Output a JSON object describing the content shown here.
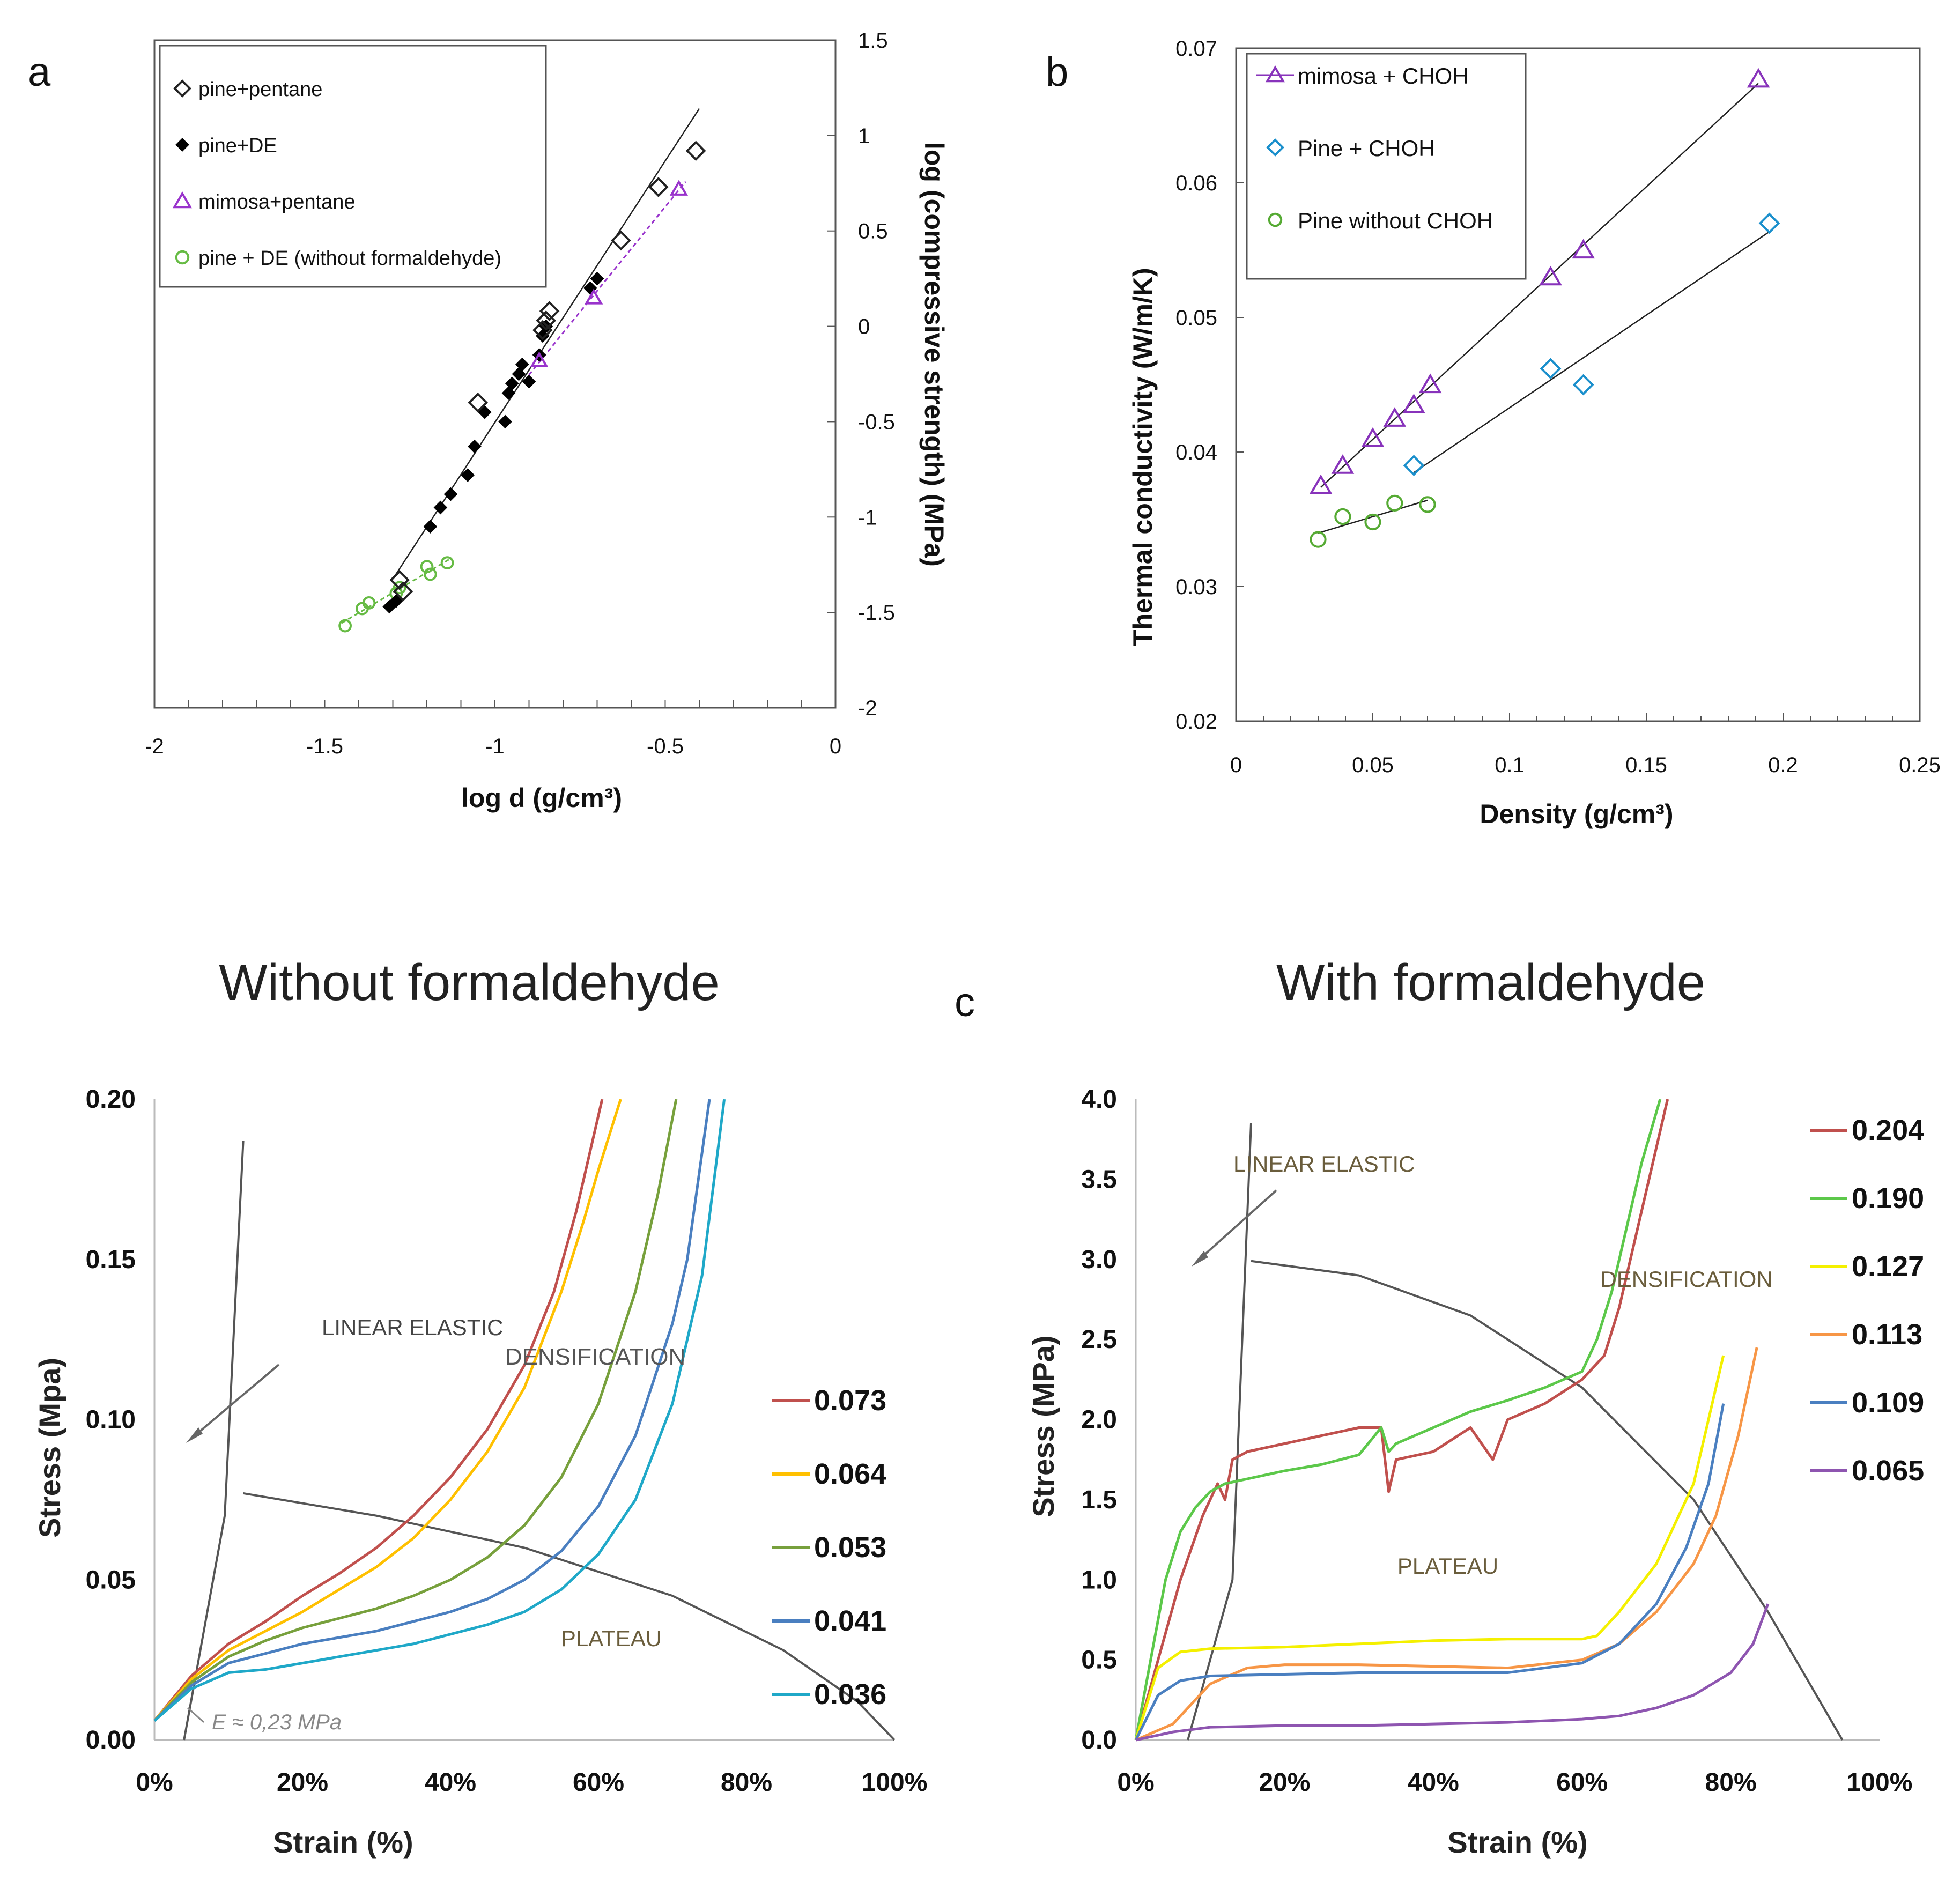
{
  "chart_data": [
    {
      "panel": "a",
      "type": "scatter",
      "title": "",
      "xlabel": "log d (g/cm³)",
      "ylabel": "log (compressive strength) (MPa)",
      "xlim": [
        -2,
        0
      ],
      "ylim": [
        -2,
        1.5
      ],
      "xticks": [
        "-2",
        "-1.5",
        "-1",
        "-0.5",
        "0"
      ],
      "yticks": [
        "1.5",
        "1",
        "0.5",
        "0",
        "-0.5",
        "-1",
        "-1.5",
        "-2"
      ],
      "legend_position": "top-left",
      "series": [
        {
          "name": "pine+pentane",
          "color": "#222222",
          "marker": "diamond-open",
          "x": [
            -1.28,
            -1.27,
            -1.05,
            -0.86,
            -0.85,
            -0.84,
            -0.63,
            -0.52,
            -0.41
          ],
          "y": [
            -1.33,
            -1.39,
            -0.4,
            -0.02,
            0.03,
            0.08,
            0.45,
            0.73,
            0.92
          ]
        },
        {
          "name": "pine+DE",
          "color": "#000000",
          "marker": "diamond-filled",
          "x": [
            -1.31,
            -1.29,
            -1.19,
            -1.16,
            -1.13,
            -1.08,
            -1.06,
            -1.03,
            -0.97,
            -0.96,
            -0.95,
            -0.93,
            -0.92,
            -0.9,
            -0.87,
            -0.86,
            -0.85,
            -0.72,
            -0.7
          ],
          "y": [
            -1.47,
            -1.44,
            -1.05,
            -0.95,
            -0.88,
            -0.78,
            -0.63,
            -0.45,
            -0.5,
            -0.35,
            -0.3,
            -0.25,
            -0.2,
            -0.29,
            -0.15,
            -0.05,
            0.0,
            0.2,
            0.25
          ]
        },
        {
          "name": "mimosa+pentane",
          "color": "#9933cc",
          "marker": "triangle-open",
          "x": [
            -0.87,
            -0.71,
            -0.46
          ],
          "y": [
            -0.18,
            0.15,
            0.72
          ]
        },
        {
          "name": "pine + DE (without formaldehyde)",
          "color": "#66bb44",
          "marker": "circle-open",
          "x": [
            -1.44,
            -1.39,
            -1.37,
            -1.29,
            -1.28,
            -1.2,
            -1.19,
            -1.14
          ],
          "y": [
            -1.57,
            -1.48,
            -1.45,
            -1.4,
            -1.37,
            -1.26,
            -1.3,
            -1.24
          ]
        }
      ]
    },
    {
      "panel": "b",
      "type": "scatter",
      "title": "",
      "xlabel": "Density (g/cm³)",
      "ylabel": "Thermal conductivity (W/m/K)",
      "xlim": [
        0,
        0.25
      ],
      "ylim": [
        0.02,
        0.07
      ],
      "xticks": [
        "0",
        "0.05",
        "0.1",
        "0.15",
        "0.2",
        "0.25"
      ],
      "yticks": [
        "0.07",
        "0.06",
        "0.05",
        "0.04",
        "0.03",
        "0.02"
      ],
      "legend_position": "top-left",
      "series": [
        {
          "name": "mimosa + CHOH",
          "color": "#8833bb",
          "marker": "triangle-open",
          "x": [
            0.031,
            0.039,
            0.05,
            0.058,
            0.065,
            0.071,
            0.115,
            0.127,
            0.191
          ],
          "y": [
            0.0375,
            0.039,
            0.041,
            0.0425,
            0.0435,
            0.045,
            0.053,
            0.055,
            0.0677
          ]
        },
        {
          "name": "Pine + CHOH",
          "color": "#1a8fcc",
          "marker": "diamond-open",
          "x": [
            0.065,
            0.115,
            0.127,
            0.195
          ],
          "y": [
            0.039,
            0.0462,
            0.045,
            0.057
          ]
        },
        {
          "name": "Pine without CHOH",
          "color": "#55aa33",
          "marker": "circle-open",
          "x": [
            0.03,
            0.039,
            0.05,
            0.058,
            0.07
          ],
          "y": [
            0.0335,
            0.0352,
            0.0348,
            0.0362,
            0.0361
          ]
        }
      ]
    },
    {
      "panel": "c-left",
      "type": "line",
      "title": "Without formaldehyde",
      "xlabel": "Strain (%)",
      "ylabel": "Stress (Mpa)",
      "xlim": [
        0,
        100
      ],
      "ylim": [
        0,
        0.2
      ],
      "xticks": [
        "0%",
        "20%",
        "40%",
        "60%",
        "80%",
        "100%"
      ],
      "yticks": [
        "0.20",
        "0.15",
        "0.10",
        "0.05",
        "0.00"
      ],
      "legend_position": "right",
      "annotations": [
        "LINEAR ELASTIC",
        "DENSIFICATION",
        "PLATEAU",
        "E ≈ 0,23 MPa"
      ],
      "series": [
        {
          "name": "0.073",
          "color": "#c0504d",
          "x": [
            0,
            5,
            10,
            15,
            20,
            25,
            30,
            35,
            40,
            45,
            50,
            54,
            57,
            58.5,
            60.5
          ],
          "y": [
            0.006,
            0.02,
            0.03,
            0.037,
            0.045,
            0.052,
            0.06,
            0.07,
            0.082,
            0.097,
            0.117,
            0.14,
            0.165,
            0.18,
            0.2
          ]
        },
        {
          "name": "0.064",
          "color": "#ffc000",
          "x": [
            0,
            5,
            10,
            15,
            20,
            25,
            30,
            35,
            40,
            45,
            50,
            55,
            58,
            60,
            63
          ],
          "y": [
            0.006,
            0.019,
            0.028,
            0.034,
            0.04,
            0.047,
            0.054,
            0.063,
            0.075,
            0.09,
            0.11,
            0.14,
            0.162,
            0.178,
            0.2
          ]
        },
        {
          "name": "0.053",
          "color": "#77a03c",
          "x": [
            0,
            5,
            10,
            15,
            20,
            25,
            30,
            35,
            40,
            45,
            50,
            55,
            60,
            65,
            68,
            70.5
          ],
          "y": [
            0.006,
            0.018,
            0.026,
            0.031,
            0.035,
            0.038,
            0.041,
            0.045,
            0.05,
            0.057,
            0.067,
            0.082,
            0.105,
            0.14,
            0.17,
            0.2
          ]
        },
        {
          "name": "0.041",
          "color": "#4a7fc0",
          "x": [
            0,
            5,
            10,
            15,
            20,
            25,
            30,
            35,
            40,
            45,
            50,
            55,
            60,
            65,
            70,
            72,
            75
          ],
          "y": [
            0.006,
            0.017,
            0.024,
            0.027,
            0.03,
            0.032,
            0.034,
            0.037,
            0.04,
            0.044,
            0.05,
            0.059,
            0.073,
            0.095,
            0.13,
            0.15,
            0.2
          ]
        },
        {
          "name": "0.036",
          "color": "#1fa8c8",
          "x": [
            0,
            5,
            10,
            15,
            20,
            25,
            30,
            35,
            40,
            45,
            50,
            55,
            60,
            65,
            70,
            74,
            77
          ],
          "y": [
            0.006,
            0.016,
            0.021,
            0.022,
            0.024,
            0.026,
            0.028,
            0.03,
            0.033,
            0.036,
            0.04,
            0.047,
            0.058,
            0.075,
            0.105,
            0.145,
            0.2
          ]
        }
      ],
      "guide_lines": [
        {
          "name": "linear-elastic-guide",
          "x": [
            4,
            9.5,
            12
          ],
          "y": [
            0,
            0.07,
            0.187
          ]
        },
        {
          "name": "plateau-envelope",
          "x": [
            12,
            30,
            50,
            70,
            85,
            95,
            100
          ],
          "y": [
            0.077,
            0.07,
            0.06,
            0.045,
            0.028,
            0.012,
            0
          ]
        }
      ]
    },
    {
      "panel": "c-right",
      "type": "line",
      "title": "With formaldehyde",
      "xlabel": "Strain (%)",
      "ylabel": "Stress (MPa)",
      "xlim": [
        0,
        100
      ],
      "ylim": [
        0,
        4.0
      ],
      "xticks": [
        "0%",
        "20%",
        "40%",
        "60%",
        "80%",
        "100%"
      ],
      "yticks": [
        "4.0",
        "3.5",
        "3.0",
        "2.5",
        "2.0",
        "1.5",
        "1.0",
        "0.5",
        "0.0"
      ],
      "legend_position": "right",
      "annotations": [
        "LINEAR ELASTIC",
        "DENSIFICATION",
        "PLATEAU"
      ],
      "series": [
        {
          "name": "0.204",
          "color": "#c0504d",
          "x": [
            0,
            3,
            6,
            9,
            11,
            12,
            13,
            15,
            20,
            25,
            30,
            33,
            34,
            35,
            40,
            45,
            48,
            50,
            55,
            60,
            63,
            65,
            67,
            69,
            71.5
          ],
          "y": [
            0,
            0.5,
            1.0,
            1.4,
            1.6,
            1.5,
            1.75,
            1.8,
            1.85,
            1.9,
            1.95,
            1.95,
            1.55,
            1.75,
            1.8,
            1.95,
            1.75,
            2.0,
            2.1,
            2.25,
            2.4,
            2.7,
            3.1,
            3.5,
            4.0
          ]
        },
        {
          "name": "0.190",
          "color": "#5cc84a",
          "x": [
            0,
            2,
            4,
            6,
            8,
            10,
            12,
            15,
            20,
            25,
            30,
            33,
            34,
            35,
            40,
            45,
            50,
            55,
            60,
            62,
            64,
            66,
            68,
            70.5
          ],
          "y": [
            0,
            0.5,
            1.0,
            1.3,
            1.45,
            1.55,
            1.6,
            1.63,
            1.68,
            1.72,
            1.78,
            1.95,
            1.8,
            1.85,
            1.95,
            2.05,
            2.12,
            2.2,
            2.3,
            2.5,
            2.8,
            3.2,
            3.6,
            4.0
          ]
        },
        {
          "name": "0.127",
          "color": "#f4f000",
          "x": [
            0,
            3,
            6,
            10,
            20,
            30,
            40,
            50,
            60,
            62,
            65,
            70,
            75,
            79
          ],
          "y": [
            0,
            0.45,
            0.55,
            0.57,
            0.58,
            0.6,
            0.62,
            0.63,
            0.63,
            0.65,
            0.8,
            1.1,
            1.6,
            2.4
          ]
        },
        {
          "name": "0.113",
          "color": "#f79646",
          "x": [
            0,
            5,
            10,
            15,
            20,
            30,
            40,
            50,
            60,
            65,
            70,
            75,
            78,
            81,
            83.5
          ],
          "y": [
            0,
            0.1,
            0.35,
            0.45,
            0.47,
            0.47,
            0.46,
            0.45,
            0.5,
            0.6,
            0.8,
            1.1,
            1.4,
            1.9,
            2.45
          ]
        },
        {
          "name": "0.109",
          "color": "#4a7fc0",
          "x": [
            0,
            3,
            6,
            10,
            20,
            30,
            40,
            50,
            60,
            65,
            70,
            74,
            77,
            79
          ],
          "y": [
            0,
            0.28,
            0.37,
            0.4,
            0.41,
            0.42,
            0.42,
            0.42,
            0.48,
            0.6,
            0.85,
            1.2,
            1.6,
            2.1
          ]
        },
        {
          "name": "0.065",
          "color": "#8e55b0",
          "x": [
            0,
            5,
            10,
            20,
            30,
            40,
            50,
            60,
            65,
            70,
            75,
            80,
            83,
            85
          ],
          "y": [
            0,
            0.05,
            0.08,
            0.09,
            0.09,
            0.1,
            0.11,
            0.13,
            0.15,
            0.2,
            0.28,
            0.42,
            0.6,
            0.85
          ]
        }
      ],
      "guide_lines": [
        {
          "name": "linear-elastic-guide",
          "x": [
            7,
            13,
            15.5
          ],
          "y": [
            0,
            1.0,
            3.85
          ]
        },
        {
          "name": "plateau-envelope",
          "x": [
            15.5,
            30,
            45,
            60,
            75,
            85,
            95
          ],
          "y": [
            2.99,
            2.9,
            2.65,
            2.2,
            1.5,
            0.8,
            0
          ]
        }
      ]
    }
  ],
  "figure": {
    "panel_labels": [
      "a",
      "b",
      "c"
    ]
  }
}
